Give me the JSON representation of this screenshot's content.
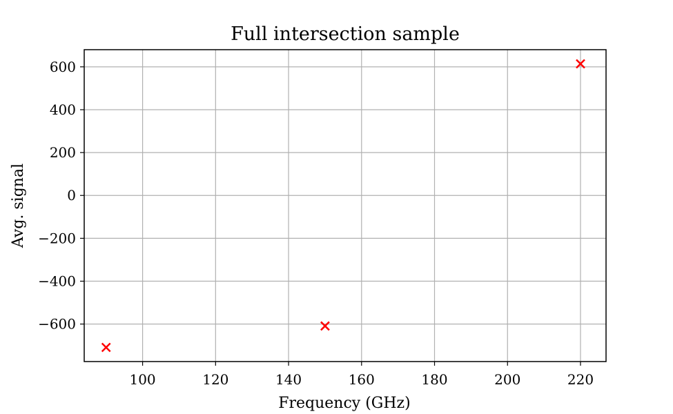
{
  "chart_data": {
    "type": "scatter",
    "title": "Full intersection sample",
    "xlabel": "Frequency (GHz)",
    "ylabel": "Avg. signal",
    "xlim": [
      84,
      227
    ],
    "ylim": [
      -775,
      680
    ],
    "xticks": [
      100,
      120,
      140,
      160,
      180,
      200,
      220
    ],
    "yticks": [
      -600,
      -400,
      -200,
      0,
      200,
      400,
      600
    ],
    "grid": true,
    "legend": "none",
    "marker": "x",
    "marker_color": "#ff0000",
    "series": [
      {
        "points": [
          {
            "x": 90,
            "y": -709
          },
          {
            "x": 150,
            "y": -609
          },
          {
            "x": 220,
            "y": 614
          }
        ]
      }
    ]
  }
}
